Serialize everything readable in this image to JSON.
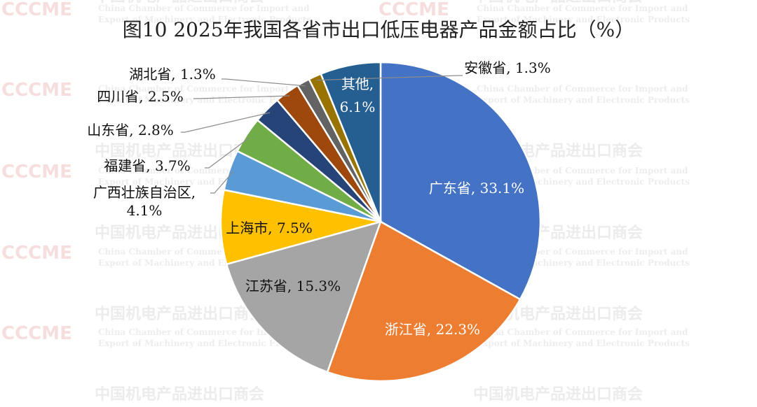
{
  "chart_data": {
    "type": "pie",
    "title": "图10 2025年我国各省市出口低压电器产品金额占比（%）",
    "unit": "%",
    "slices": [
      {
        "name": "广东省",
        "value": 33.1,
        "label": "广东省, 33.1%",
        "color": "#4472C4"
      },
      {
        "name": "浙江省",
        "value": 22.3,
        "label": "浙江省, 22.3%",
        "color": "#ED7D31"
      },
      {
        "name": "江苏省",
        "value": 15.3,
        "label": "江苏省, 15.3%",
        "color": "#A5A5A5"
      },
      {
        "name": "上海市",
        "value": 7.5,
        "label": "上海市, 7.5%",
        "color": "#FFC000"
      },
      {
        "name": "广西壮族自治区",
        "value": 4.1,
        "label": "广西壮族自治区,",
        "label2": "4.1%",
        "color": "#5B9BD5"
      },
      {
        "name": "福建省",
        "value": 3.7,
        "label": "福建省, 3.7%",
        "color": "#70AD47"
      },
      {
        "name": "山东省",
        "value": 2.8,
        "label": "山东省, 2.8%",
        "color": "#264478"
      },
      {
        "name": "四川省",
        "value": 2.5,
        "label": "四川省, 2.5%",
        "color": "#9E480E"
      },
      {
        "name": "湖北省",
        "value": 1.3,
        "label": "湖北省, 1.3%",
        "color": "#636363"
      },
      {
        "name": "安徽省",
        "value": 1.3,
        "label": "安徽省, 1.3%",
        "color": "#997300"
      },
      {
        "name": "其他",
        "value": 6.1,
        "label": "其他,",
        "label2": "6.1%",
        "color": "#255E91"
      }
    ]
  },
  "watermark": {
    "cn": "中国机电产品进出口商会",
    "en1": "China Chamber of Commerce for Import and",
    "en2": "Export of Machinery and Electronic Products",
    "logo": "CCCME"
  }
}
